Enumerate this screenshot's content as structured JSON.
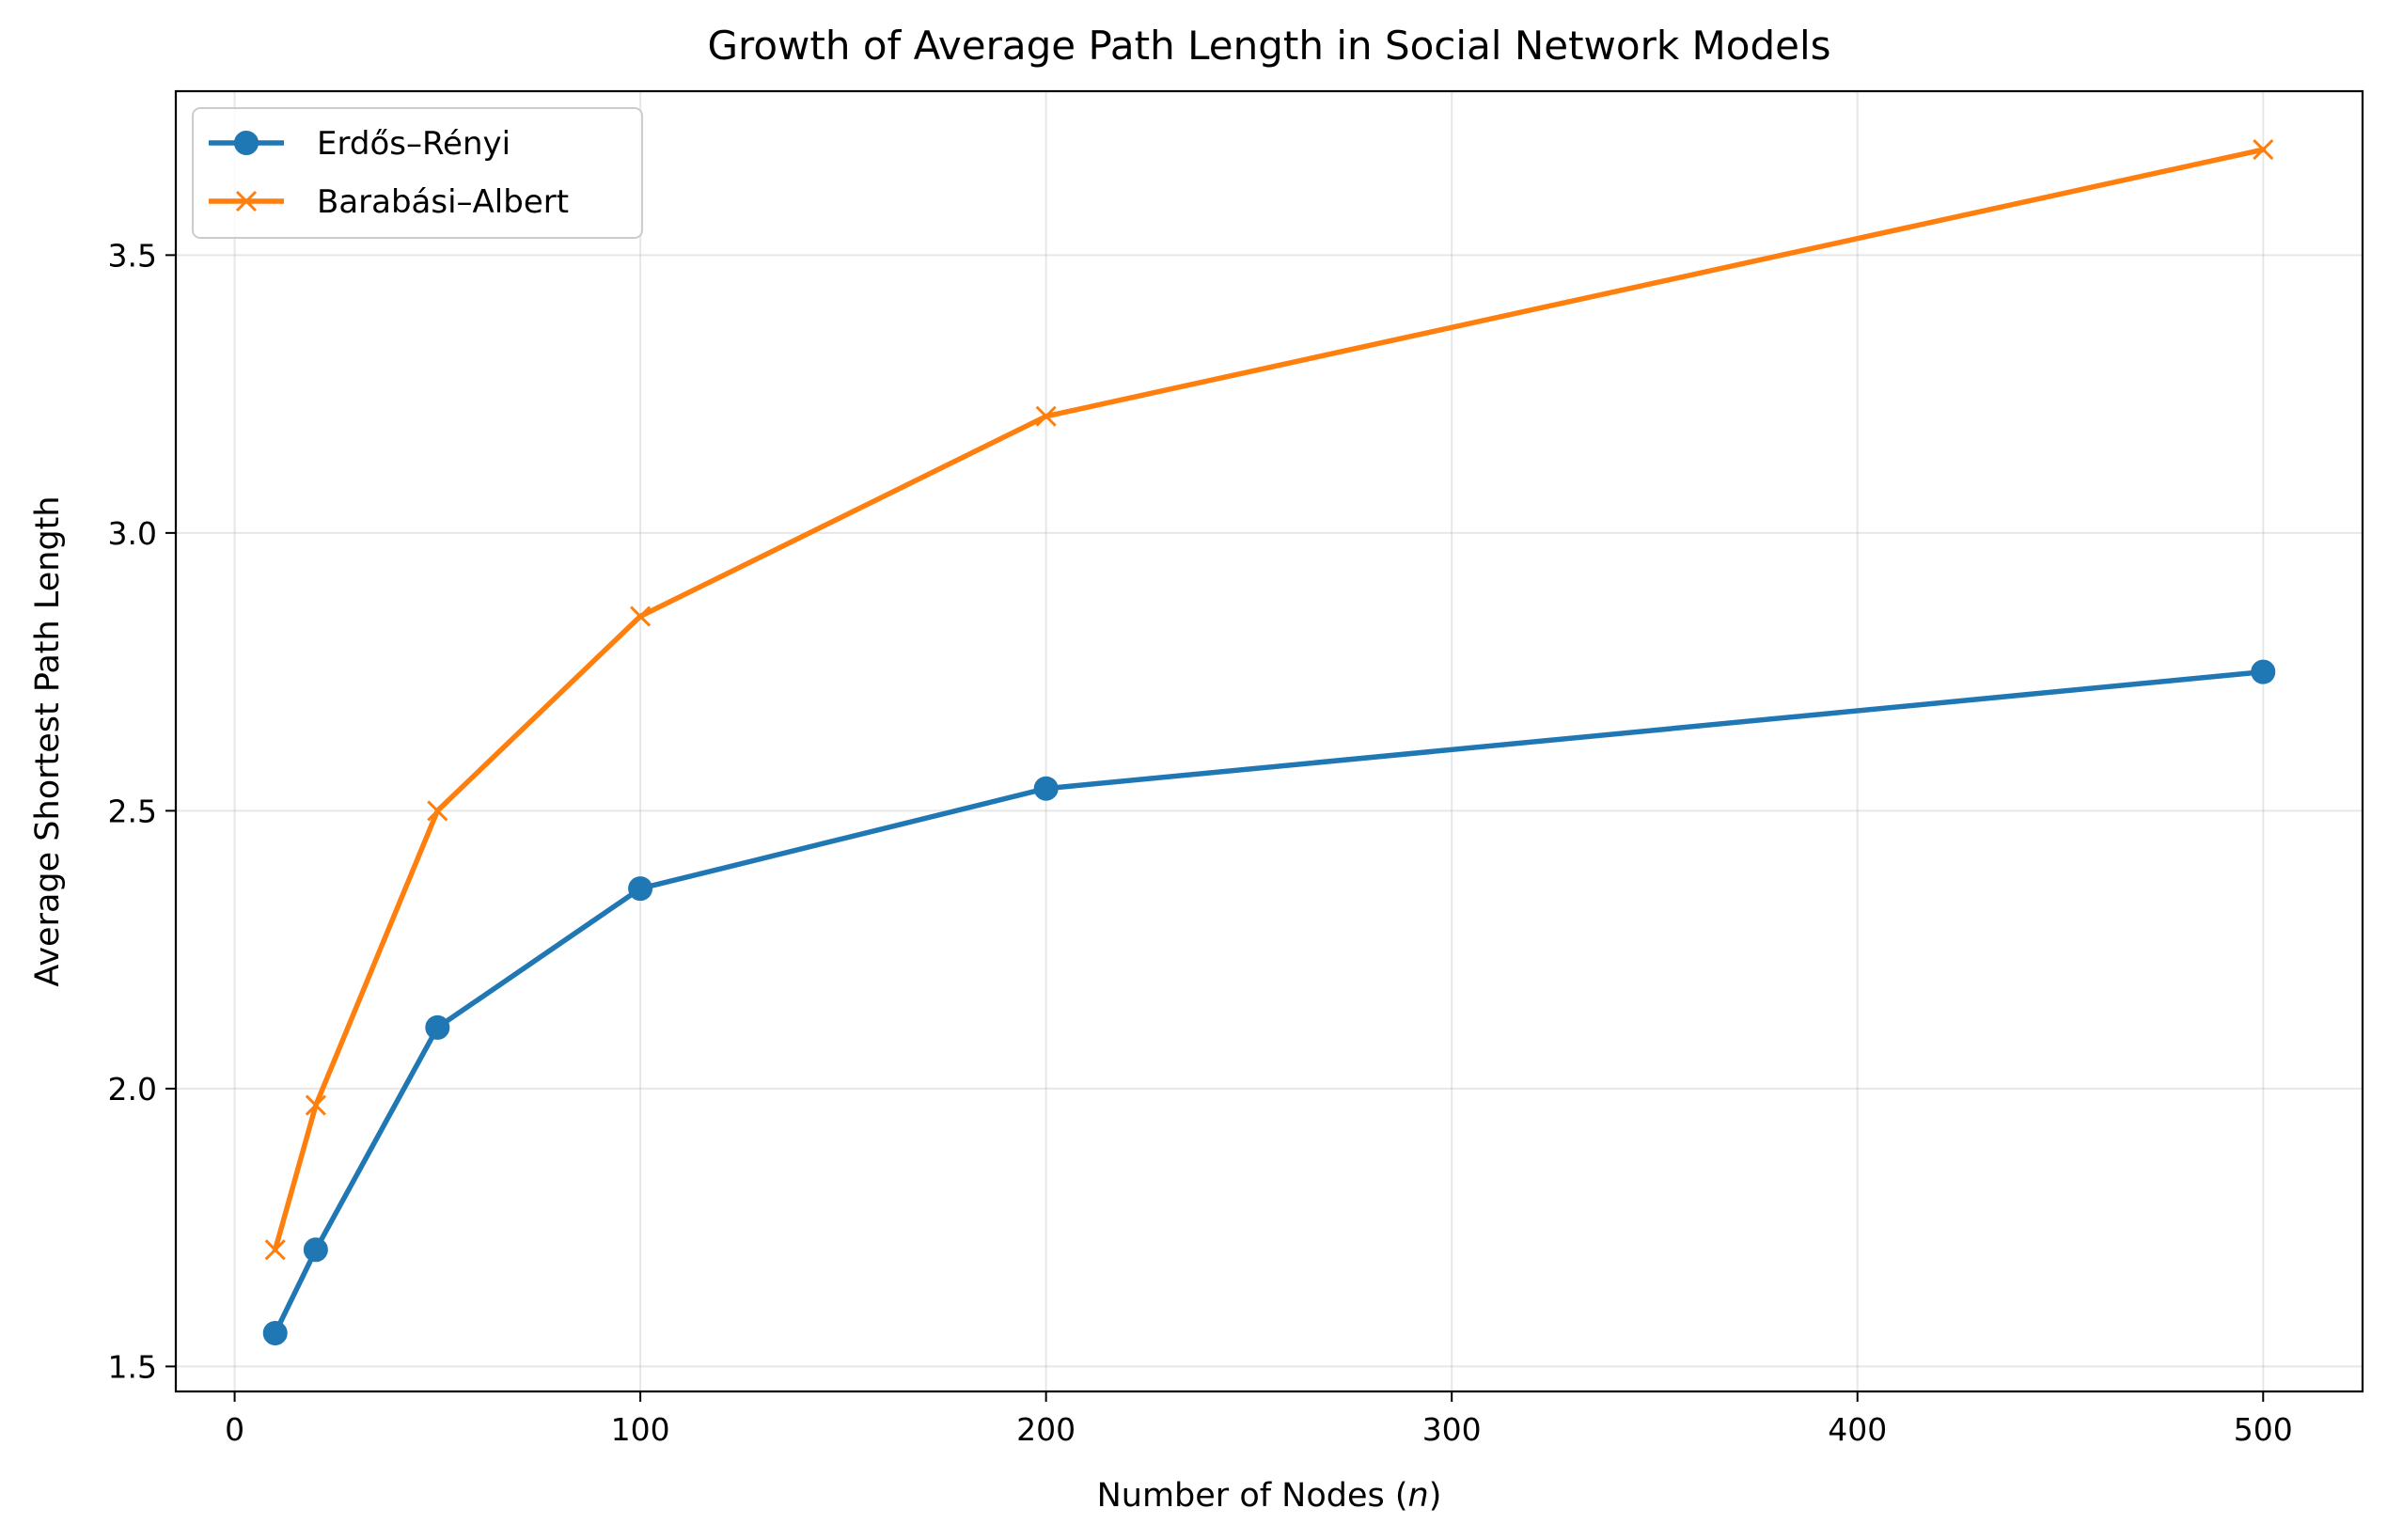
{
  "chart_data": {
    "type": "line",
    "title": "Growth of Average Path Length in Social Network Models",
    "xlabel": "Number of Nodes",
    "xlabel_var": "n",
    "ylabel": "Average Shortest Path Length",
    "xlim": [
      -14.5,
      524.5
    ],
    "ylim": [
      1.455,
      3.795
    ],
    "x_ticks": [
      0,
      100,
      200,
      300,
      400,
      500
    ],
    "y_ticks": [
      1.5,
      2.0,
      2.5,
      3.0,
      3.5
    ],
    "x_tick_labels": [
      "0",
      "100",
      "200",
      "300",
      "400",
      "500"
    ],
    "y_tick_labels": [
      "1.5",
      "2.0",
      "2.5",
      "3.0",
      "3.5"
    ],
    "grid": true,
    "legend_position": "top-left",
    "x": [
      10,
      20,
      50,
      100,
      200,
      500
    ],
    "series": [
      {
        "name": "Erdős–Rényi",
        "marker": "circle",
        "color": "#1f77b4",
        "values": [
          1.56,
          1.71,
          2.11,
          2.36,
          2.54,
          2.75
        ]
      },
      {
        "name": "Barabási–Albert",
        "marker": "x",
        "color": "#ff7f0e",
        "values": [
          1.71,
          1.97,
          2.5,
          2.85,
          3.21,
          3.69
        ]
      }
    ]
  }
}
